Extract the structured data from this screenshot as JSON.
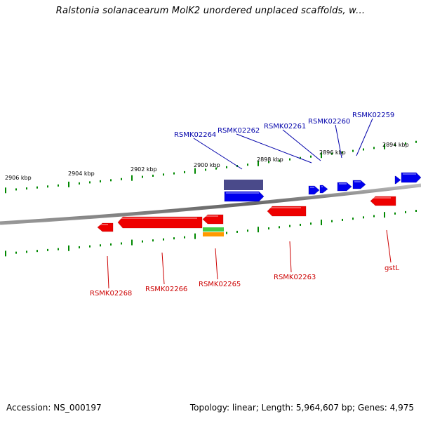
{
  "title": "Ralstonia solanacearum MolK2 unordered unplaced scaffolds, w...",
  "footer": {
    "accession": "Accession: NS_000197",
    "summary": "Topology: linear; Length: 5,964,607 bp; Genes: 4,975"
  },
  "colors": {
    "forward_gene": "#0000ee",
    "reverse_gene": "#ee0000",
    "forward_label": "#0000aa",
    "reverse_label": "#cc0000",
    "tick": "#008800",
    "backbone": "#777777",
    "locus_bar": "#4a4a8a",
    "feature_green": "#44cc44",
    "feature_orange": "#ff9900"
  },
  "scale_labels": [
    "2906 kbp",
    "2904 kbp",
    "2902 kbp",
    "2900 kbp",
    "2898 kbp",
    "2896 kbp",
    "2894 kbp"
  ],
  "forward_genes": [
    "RSMK02264",
    "RSMK02262",
    "RSMK02261",
    "RSMK02260",
    "RSMK02259"
  ],
  "reverse_genes": [
    "RSMK02268",
    "RSMK02266",
    "RSMK02265",
    "RSMK02263",
    "gstL"
  ]
}
